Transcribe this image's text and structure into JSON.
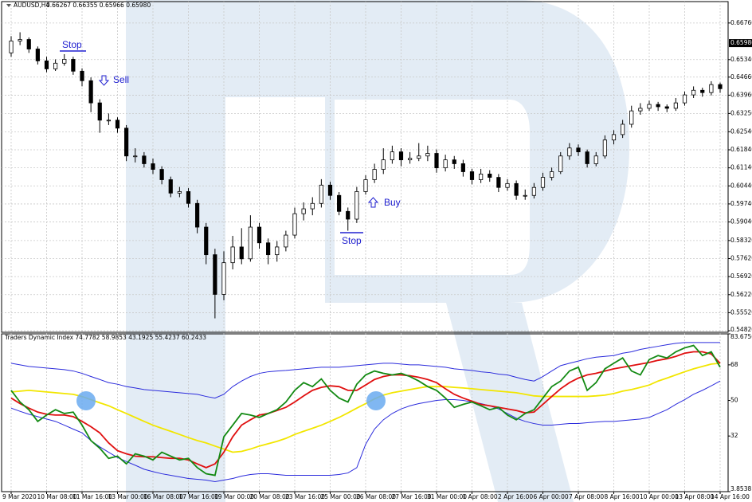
{
  "chart_data": [
    {
      "type": "candlestick",
      "title": "AUDUSD,H4",
      "subtitle": "0.66267 0.66355 0.65966 0.65980",
      "annotations": [
        "Stop",
        "Sell",
        "Buy",
        "Stop"
      ],
      "up_color": "#ffffff",
      "down_color": "#000000",
      "grid": true,
      "ylim": [
        0.5476,
        0.6759
      ],
      "yticks": [
        {
          "value": 0.6676,
          "label": "0.66760"
        },
        {
          "value": 0.6534,
          "label": "0.65340"
        },
        {
          "value": 0.6466,
          "label": "0.64660"
        },
        {
          "value": 0.6396,
          "label": "0.63960"
        },
        {
          "value": 0.6325,
          "label": "0.63250"
        },
        {
          "value": 0.6254,
          "label": "0.62540"
        },
        {
          "value": 0.6184,
          "label": "0.61840"
        },
        {
          "value": 0.6114,
          "label": "0.61140"
        },
        {
          "value": 0.6044,
          "label": "0.60440"
        },
        {
          "value": 0.5974,
          "label": "0.59740"
        },
        {
          "value": 0.5904,
          "label": "0.59040"
        },
        {
          "value": 0.5832,
          "label": "0.58320"
        },
        {
          "value": 0.5762,
          "label": "0.57620"
        },
        {
          "value": 0.5692,
          "label": "0.56920"
        },
        {
          "value": 0.5622,
          "label": "0.56220"
        },
        {
          "value": 0.5552,
          "label": "0.55520"
        },
        {
          "value": 0.5482,
          "label": "0.54820"
        }
      ],
      "last_price": {
        "value": 0.6598,
        "label": "0.65980"
      },
      "categories": [
        "9 Mar 2020",
        null,
        null,
        null,
        "10 Mar 08:00",
        null,
        null,
        null,
        "11 Mar 16:00",
        null,
        null,
        null,
        "13 Mar 00:00",
        null,
        null,
        null,
        "16 Mar 08:00",
        null,
        null,
        null,
        "17 Mar 16:00",
        null,
        null,
        null,
        "19 Mar 00:00",
        null,
        null,
        null,
        "20 Mar 08:00",
        null,
        null,
        null,
        "23 Mar 16:00",
        null,
        null,
        null,
        "25 Mar 00:00",
        null,
        null,
        null,
        "26 Mar 08:00",
        null,
        null,
        null,
        "27 Mar 16:00",
        null,
        null,
        null,
        "31 Mar 00:00",
        null,
        null,
        null,
        "1 Apr 08:00",
        null,
        null,
        null,
        "2 Apr 16:00",
        null,
        null,
        null,
        "6 Apr 00:00",
        null,
        null,
        null,
        "7 Apr 08:00",
        null,
        null,
        null,
        "8 Apr 16:00",
        null,
        null,
        null,
        "10 Apr 00:00",
        null,
        null,
        null,
        "13 Apr 08:00",
        null,
        null,
        null,
        "14 Apr 16:00"
      ],
      "ohlc": [
        [
          0.656,
          0.6625,
          0.6545,
          0.6606
        ],
        [
          0.6606,
          0.664,
          0.659,
          0.6612
        ],
        [
          0.6612,
          0.662,
          0.656,
          0.6575
        ],
        [
          0.6575,
          0.6585,
          0.6515,
          0.6529
        ],
        [
          0.6529,
          0.6545,
          0.6485,
          0.6498
        ],
        [
          0.6498,
          0.6535,
          0.649,
          0.652
        ],
        [
          0.652,
          0.6555,
          0.651,
          0.6535
        ],
        [
          0.6535,
          0.6545,
          0.6475,
          0.6489
        ],
        [
          0.6489,
          0.65,
          0.643,
          0.6452
        ],
        [
          0.6452,
          0.6465,
          0.633,
          0.6366
        ],
        [
          0.6366,
          0.638,
          0.625,
          0.6299
        ],
        [
          0.6299,
          0.6325,
          0.628,
          0.6299
        ],
        [
          0.6299,
          0.631,
          0.625,
          0.6268
        ],
        [
          0.6268,
          0.628,
          0.614,
          0.616
        ],
        [
          0.616,
          0.619,
          0.6135,
          0.616
        ],
        [
          0.616,
          0.6175,
          0.6115,
          0.613
        ],
        [
          0.613,
          0.615,
          0.609,
          0.6108
        ],
        [
          0.6108,
          0.612,
          0.605,
          0.6068
        ],
        [
          0.6068,
          0.608,
          0.6,
          0.6016
        ],
        [
          0.6016,
          0.604,
          0.6,
          0.6022
        ],
        [
          0.6022,
          0.6035,
          0.596,
          0.5976
        ],
        [
          0.5976,
          0.599,
          0.586,
          0.5884
        ],
        [
          0.5884,
          0.59,
          0.574,
          0.5777
        ],
        [
          0.5777,
          0.58,
          0.553,
          0.5623
        ],
        [
          0.5623,
          0.579,
          0.56,
          0.5746
        ],
        [
          0.5746,
          0.585,
          0.572,
          0.5807
        ],
        [
          0.5807,
          0.588,
          0.574,
          0.5761
        ],
        [
          0.5761,
          0.593,
          0.575,
          0.5884
        ],
        [
          0.5884,
          0.59,
          0.58,
          0.5823
        ],
        [
          0.5823,
          0.584,
          0.574,
          0.5777
        ],
        [
          0.5777,
          0.583,
          0.575,
          0.5807
        ],
        [
          0.5807,
          0.587,
          0.579,
          0.5853
        ],
        [
          0.5853,
          0.596,
          0.584,
          0.5936
        ],
        [
          0.5936,
          0.598,
          0.591,
          0.5955
        ],
        [
          0.5955,
          0.6,
          0.593,
          0.5976
        ],
        [
          0.5976,
          0.607,
          0.596,
          0.6047
        ],
        [
          0.6047,
          0.606,
          0.599,
          0.6007
        ],
        [
          0.6007,
          0.602,
          0.593,
          0.5945
        ],
        [
          0.5945,
          0.596,
          0.587,
          0.5915
        ],
        [
          0.5915,
          0.604,
          0.59,
          0.6022
        ],
        [
          0.6022,
          0.6085,
          0.601,
          0.6068
        ],
        [
          0.6068,
          0.613,
          0.6055,
          0.6108
        ],
        [
          0.6108,
          0.619,
          0.609,
          0.6145
        ],
        [
          0.6145,
          0.62,
          0.613,
          0.6176
        ],
        [
          0.6176,
          0.619,
          0.612,
          0.6145
        ],
        [
          0.6145,
          0.6175,
          0.613,
          0.6151
        ],
        [
          0.6151,
          0.621,
          0.614,
          0.616
        ],
        [
          0.616,
          0.62,
          0.614,
          0.617
        ],
        [
          0.617,
          0.6185,
          0.6095,
          0.6114
        ],
        [
          0.6114,
          0.6165,
          0.61,
          0.6145
        ],
        [
          0.6145,
          0.616,
          0.611,
          0.613
        ],
        [
          0.613,
          0.6145,
          0.608,
          0.6099
        ],
        [
          0.6099,
          0.611,
          0.605,
          0.6068
        ],
        [
          0.6068,
          0.611,
          0.6055,
          0.609
        ],
        [
          0.609,
          0.6105,
          0.606,
          0.6077
        ],
        [
          0.6077,
          0.609,
          0.602,
          0.6038
        ],
        [
          0.6038,
          0.607,
          0.6025,
          0.6053
        ],
        [
          0.6053,
          0.6065,
          0.599,
          0.6007
        ],
        [
          0.6007,
          0.603,
          0.599,
          0.6007
        ],
        [
          0.6007,
          0.6055,
          0.5995,
          0.6038
        ],
        [
          0.6038,
          0.6095,
          0.6025,
          0.6077
        ],
        [
          0.6077,
          0.6115,
          0.6065,
          0.6099
        ],
        [
          0.6099,
          0.6175,
          0.609,
          0.616
        ],
        [
          0.616,
          0.621,
          0.6145,
          0.6191
        ],
        [
          0.6191,
          0.6205,
          0.616,
          0.6176
        ],
        [
          0.6176,
          0.6185,
          0.6115,
          0.613
        ],
        [
          0.613,
          0.6175,
          0.612,
          0.616
        ],
        [
          0.616,
          0.624,
          0.615,
          0.6222
        ],
        [
          0.6222,
          0.626,
          0.6205,
          0.6243
        ],
        [
          0.6243,
          0.63,
          0.623,
          0.6283
        ],
        [
          0.6283,
          0.6355,
          0.627,
          0.6335
        ],
        [
          0.6335,
          0.6365,
          0.632,
          0.6345
        ],
        [
          0.6345,
          0.6375,
          0.6335,
          0.636
        ],
        [
          0.636,
          0.637,
          0.6335,
          0.6351
        ],
        [
          0.6351,
          0.636,
          0.633,
          0.6345
        ],
        [
          0.6345,
          0.6385,
          0.6335,
          0.6366
        ],
        [
          0.6366,
          0.641,
          0.6355,
          0.6397
        ],
        [
          0.6397,
          0.643,
          0.6385,
          0.6415
        ],
        [
          0.6415,
          0.6425,
          0.639,
          0.6406
        ],
        [
          0.6406,
          0.645,
          0.6395,
          0.6437
        ],
        [
          0.6437,
          0.6445,
          0.6405,
          0.6421
        ]
      ]
    },
    {
      "type": "line",
      "title": "Traders Dynamic Index 74.7782 58.9853 43.1925 55.4237 60.2433",
      "ylim": [
        3.8538,
        83.6756
      ],
      "yticks": [
        83.6756,
        68,
        50,
        32,
        3.8538
      ],
      "series": [
        {
          "color": "#2b2bdc",
          "values": [
            68.8,
            68.0,
            67.2,
            66.8,
            66.4,
            66.0,
            65.6,
            64.9,
            63.7,
            62.1,
            60.6,
            59.0,
            58.2,
            57.0,
            56.3,
            55.5,
            55.1,
            54.7,
            54.3,
            53.9,
            53.5,
            53.1,
            52.0,
            51.2,
            53.1,
            57.0,
            59.8,
            62.1,
            63.7,
            64.5,
            64.9,
            65.2,
            65.6,
            66.0,
            66.4,
            66.8,
            66.8,
            66.8,
            67.2,
            67.6,
            68.0,
            68.4,
            68.8,
            68.8,
            68.4,
            68.0,
            68.0,
            67.6,
            67.2,
            66.8,
            66.0,
            65.6,
            65.2,
            64.5,
            64.1,
            63.3,
            62.9,
            61.7,
            60.6,
            59.8,
            62.1,
            64.9,
            67.6,
            68.8,
            69.9,
            71.1,
            71.9,
            72.3,
            72.7,
            73.9,
            74.6,
            75.8,
            76.6,
            77.4,
            78.2,
            78.9,
            79.3,
            79.3,
            79.3,
            79.3,
            79.3
          ]
        },
        {
          "color": "#2b2bdc",
          "values": [
            46.1,
            44.5,
            43.0,
            41.8,
            40.6,
            39.4,
            37.5,
            35.5,
            33.6,
            29.7,
            26.5,
            23.8,
            21.1,
            19.1,
            17.2,
            15.2,
            14.0,
            12.9,
            12.1,
            11.3,
            10.5,
            10.1,
            9.7,
            8.9,
            9.7,
            10.5,
            11.7,
            12.5,
            12.9,
            12.9,
            12.5,
            12.1,
            12.1,
            12.1,
            12.1,
            12.1,
            12.1,
            12.5,
            13.3,
            16.0,
            27.8,
            35.5,
            40.2,
            43.4,
            45.7,
            47.3,
            48.4,
            49.2,
            50.0,
            50.4,
            50.4,
            50.0,
            49.2,
            48.4,
            47.3,
            45.7,
            43.4,
            41.0,
            39.4,
            38.3,
            37.5,
            37.5,
            37.9,
            38.3,
            38.3,
            38.7,
            39.1,
            39.4,
            39.4,
            39.8,
            40.2,
            40.6,
            41.4,
            43.4,
            45.3,
            48.0,
            50.4,
            53.1,
            55.1,
            57.4,
            59.8
          ]
        },
        {
          "color": "#f2e600",
          "values": [
            54.3,
            54.7,
            55.1,
            54.7,
            54.3,
            53.9,
            53.5,
            53.1,
            52.0,
            50.4,
            48.8,
            47.3,
            45.3,
            43.4,
            41.4,
            39.4,
            37.5,
            35.9,
            34.4,
            32.8,
            31.2,
            29.7,
            28.5,
            26.9,
            25.4,
            23.8,
            24.2,
            25.4,
            26.9,
            28.1,
            29.3,
            30.8,
            32.8,
            34.4,
            35.9,
            37.5,
            39.4,
            41.4,
            43.7,
            46.1,
            48.4,
            50.8,
            52.7,
            53.9,
            54.7,
            55.5,
            56.3,
            57.0,
            57.0,
            57.0,
            56.6,
            56.3,
            55.9,
            55.5,
            55.1,
            54.7,
            54.3,
            53.9,
            53.1,
            52.3,
            52.0,
            52.0,
            52.0,
            52.0,
            52.0,
            52.0,
            52.3,
            52.7,
            53.5,
            54.7,
            55.5,
            56.6,
            57.8,
            59.8,
            61.3,
            62.9,
            64.5,
            66.0,
            67.2,
            68.4,
            68.8
          ]
        },
        {
          "color": "#e01010",
          "values": [
            51.2,
            48.4,
            46.1,
            44.1,
            43.0,
            42.6,
            42.6,
            41.8,
            39.4,
            36.7,
            33.6,
            28.5,
            24.6,
            23.0,
            21.8,
            21.5,
            21.5,
            21.1,
            20.7,
            20.7,
            19.9,
            17.9,
            16.0,
            17.9,
            23.8,
            31.6,
            37.5,
            40.2,
            42.6,
            43.4,
            44.9,
            46.5,
            49.2,
            52.3,
            55.1,
            56.6,
            57.4,
            57.0,
            55.1,
            55.1,
            57.8,
            60.6,
            62.1,
            62.9,
            62.9,
            62.5,
            61.7,
            60.6,
            59.0,
            55.9,
            53.1,
            51.2,
            49.6,
            48.0,
            47.3,
            46.5,
            45.7,
            44.9,
            43.7,
            44.1,
            48.0,
            52.0,
            55.9,
            59.0,
            61.3,
            62.9,
            63.7,
            64.9,
            66.0,
            66.8,
            67.6,
            68.4,
            69.2,
            70.3,
            71.1,
            72.3,
            73.9,
            74.6,
            74.6,
            73.5,
            68.8
          ]
        },
        {
          "color": "#138a13",
          "values": [
            55.1,
            49.2,
            45.3,
            39.4,
            42.6,
            45.3,
            43.4,
            44.1,
            37.5,
            29.7,
            25.8,
            20.7,
            21.8,
            17.9,
            23.0,
            21.8,
            19.9,
            23.8,
            21.8,
            19.9,
            20.7,
            16.0,
            12.9,
            12.1,
            31.6,
            37.5,
            43.4,
            42.6,
            41.4,
            43.4,
            45.3,
            49.2,
            55.1,
            59.0,
            57.0,
            60.9,
            55.1,
            51.2,
            49.2,
            58.2,
            62.9,
            64.9,
            63.7,
            62.9,
            63.7,
            62.1,
            59.8,
            57.0,
            55.1,
            51.2,
            46.5,
            48.0,
            49.2,
            47.3,
            45.3,
            46.5,
            42.6,
            40.2,
            43.4,
            45.3,
            51.2,
            57.0,
            59.8,
            64.9,
            66.8,
            55.1,
            59.0,
            66.0,
            68.8,
            71.5,
            64.9,
            62.9,
            70.7,
            72.7,
            71.5,
            74.6,
            76.6,
            77.8,
            72.7,
            74.6,
            66.8
          ]
        }
      ]
    }
  ]
}
